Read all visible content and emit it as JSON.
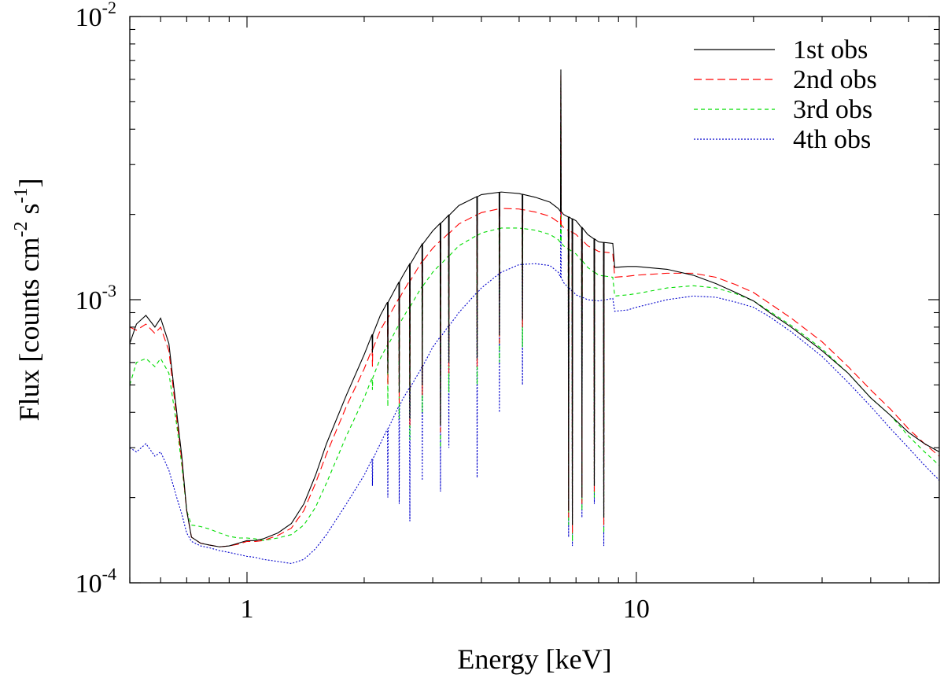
{
  "chart_data": {
    "type": "line",
    "title": "",
    "xlabel": "Energy [keV]",
    "ylabel": {
      "base": "Flux [counts cm",
      "exp1": "-2",
      "mid": " s",
      "exp2": "-1",
      "end": "]"
    },
    "x_scale": "log",
    "y_scale": "log",
    "xlim": [
      0.5,
      60
    ],
    "ylim": [
      0.0001,
      0.01
    ],
    "x_ticks": [
      {
        "value": 1,
        "label": "1"
      },
      {
        "value": 10,
        "label": "10"
      }
    ],
    "y_ticks": [
      {
        "value": 0.0001,
        "base": "10",
        "exp": "-4"
      },
      {
        "value": 0.001,
        "base": "10",
        "exp": "-3"
      },
      {
        "value": 0.01,
        "base": "10",
        "exp": "-2"
      }
    ],
    "grid": false,
    "legend_position": "top-right",
    "series": [
      {
        "name": "1st obs",
        "color": "#000000",
        "dash": "solid",
        "points": [
          [
            0.5,
            0.0007
          ],
          [
            0.52,
            0.00082
          ],
          [
            0.55,
            0.00088
          ],
          [
            0.58,
            0.0008
          ],
          [
            0.6,
            0.00086
          ],
          [
            0.63,
            0.0007
          ],
          [
            0.66,
            0.0004
          ],
          [
            0.68,
            0.00028
          ],
          [
            0.7,
            0.00018
          ],
          [
            0.72,
            0.000145
          ],
          [
            0.76,
            0.000138
          ],
          [
            0.8,
            0.000136
          ],
          [
            0.85,
            0.000134
          ],
          [
            0.9,
            0.000135
          ],
          [
            0.95,
            0.000138
          ],
          [
            1.0,
            0.000141
          ],
          [
            1.05,
            0.000141
          ],
          [
            1.1,
            0.000143
          ],
          [
            1.2,
            0.00015
          ],
          [
            1.3,
            0.000162
          ],
          [
            1.4,
            0.00019
          ],
          [
            1.5,
            0.00024
          ],
          [
            1.6,
            0.00031
          ],
          [
            1.8,
            0.00046
          ],
          [
            2.0,
            0.00064
          ],
          [
            2.2,
            0.00088
          ],
          [
            2.5,
            0.0012
          ],
          [
            2.8,
            0.00155
          ],
          [
            3.0,
            0.00175
          ],
          [
            3.5,
            0.00215
          ],
          [
            4.0,
            0.00235
          ],
          [
            4.5,
            0.0024
          ],
          [
            5.0,
            0.00237
          ],
          [
            5.5,
            0.0023
          ],
          [
            6.0,
            0.00221
          ],
          [
            6.3,
            0.0021
          ],
          [
            6.5,
            0.002
          ],
          [
            7.0,
            0.0019
          ],
          [
            7.5,
            0.0017
          ],
          [
            8.0,
            0.0016
          ],
          [
            8.7,
            0.00158
          ],
          [
            8.8,
            0.0013
          ],
          [
            9.5,
            0.00131
          ],
          [
            10,
            0.00131
          ],
          [
            12,
            0.00128
          ],
          [
            14,
            0.00122
          ],
          [
            16,
            0.00114
          ],
          [
            18,
            0.00106
          ],
          [
            20,
            0.00099
          ],
          [
            22,
            0.0009
          ],
          [
            25,
            0.0008
          ],
          [
            30,
            0.00066
          ],
          [
            35,
            0.00055
          ],
          [
            40,
            0.00045
          ],
          [
            45,
            0.00039
          ],
          [
            50,
            0.00034
          ],
          [
            55,
            0.00031
          ],
          [
            60,
            0.00029
          ]
        ],
        "dips": [
          [
            2.1,
            0.00065
          ],
          [
            2.3,
            0.00055
          ],
          [
            2.46,
            0.00047
          ],
          [
            2.62,
            0.00038
          ],
          [
            2.82,
            0.0005
          ],
          [
            3.14,
            0.00036
          ],
          [
            3.3,
            0.0006
          ],
          [
            3.9,
            0.00062
          ],
          [
            4.45,
            0.00075
          ],
          [
            5.1,
            0.00085
          ],
          [
            6.7,
            0.00018
          ],
          [
            6.85,
            0.00016
          ],
          [
            7.25,
            0.0002
          ],
          [
            7.8,
            0.00022
          ],
          [
            8.25,
            0.00017
          ]
        ],
        "peak": [
          6.4,
          0.0065
        ]
      },
      {
        "name": "2nd obs",
        "color": "#ff0000",
        "dash": "10,5",
        "points": [
          [
            0.5,
            0.0008
          ],
          [
            0.52,
            0.00078
          ],
          [
            0.55,
            0.00082
          ],
          [
            0.58,
            0.00076
          ],
          [
            0.6,
            0.0008
          ],
          [
            0.63,
            0.00066
          ],
          [
            0.66,
            0.00038
          ],
          [
            0.68,
            0.00027
          ],
          [
            0.7,
            0.00018
          ],
          [
            0.72,
            0.000145
          ],
          [
            0.76,
            0.000138
          ],
          [
            0.8,
            0.000136
          ],
          [
            0.85,
            0.000134
          ],
          [
            0.9,
            0.000135
          ],
          [
            0.95,
            0.000137
          ],
          [
            1.0,
            0.00014
          ],
          [
            1.05,
            0.00014
          ],
          [
            1.1,
            0.000141
          ],
          [
            1.2,
            0.000147
          ],
          [
            1.3,
            0.000156
          ],
          [
            1.4,
            0.00018
          ],
          [
            1.5,
            0.000225
          ],
          [
            1.6,
            0.000285
          ],
          [
            1.8,
            0.00042
          ],
          [
            2.0,
            0.00057
          ],
          [
            2.2,
            0.00078
          ],
          [
            2.5,
            0.00105
          ],
          [
            2.8,
            0.00135
          ],
          [
            3.0,
            0.00152
          ],
          [
            3.5,
            0.00185
          ],
          [
            4.0,
            0.00203
          ],
          [
            4.5,
            0.0021
          ],
          [
            5.0,
            0.00209
          ],
          [
            5.5,
            0.00204
          ],
          [
            6.0,
            0.00197
          ],
          [
            6.3,
            0.00188
          ],
          [
            6.5,
            0.0018
          ],
          [
            7.0,
            0.0017
          ],
          [
            7.5,
            0.00155
          ],
          [
            8.0,
            0.00148
          ],
          [
            8.7,
            0.00146
          ],
          [
            8.8,
            0.0012
          ],
          [
            9.5,
            0.00121
          ],
          [
            10,
            0.00122
          ],
          [
            12,
            0.00124
          ],
          [
            14,
            0.00124
          ],
          [
            16,
            0.0012
          ],
          [
            18,
            0.00113
          ],
          [
            20,
            0.00106
          ],
          [
            22,
            0.00097
          ],
          [
            25,
            0.00086
          ],
          [
            30,
            0.00071
          ],
          [
            35,
            0.00058
          ],
          [
            40,
            0.00048
          ],
          [
            45,
            0.00041
          ],
          [
            50,
            0.00035
          ],
          [
            55,
            0.00031
          ],
          [
            60,
            0.00028
          ]
        ],
        "dips": [
          [
            2.1,
            0.00058
          ],
          [
            2.3,
            0.0005
          ],
          [
            2.46,
            0.00043
          ],
          [
            2.62,
            0.00036
          ],
          [
            2.82,
            0.00046
          ],
          [
            3.14,
            0.00034
          ],
          [
            3.3,
            0.00055
          ],
          [
            3.9,
            0.00058
          ],
          [
            4.45,
            0.0007
          ],
          [
            5.1,
            0.0008
          ],
          [
            6.7,
            0.00017
          ],
          [
            6.85,
            0.00015
          ],
          [
            7.25,
            0.00019
          ],
          [
            7.8,
            0.00021
          ],
          [
            8.25,
            0.00016
          ]
        ],
        "peak": [
          6.4,
          0.0062
        ]
      },
      {
        "name": "3rd obs",
        "color": "#00dd00",
        "dash": "5,4",
        "points": [
          [
            0.5,
            0.0005
          ],
          [
            0.52,
            0.0006
          ],
          [
            0.55,
            0.00062
          ],
          [
            0.58,
            0.00058
          ],
          [
            0.6,
            0.00062
          ],
          [
            0.63,
            0.00055
          ],
          [
            0.66,
            0.00036
          ],
          [
            0.68,
            0.00026
          ],
          [
            0.7,
            0.00018
          ],
          [
            0.72,
            0.00016
          ],
          [
            0.76,
            0.000158
          ],
          [
            0.8,
            0.000155
          ],
          [
            0.85,
            0.00015
          ],
          [
            0.9,
            0.000146
          ],
          [
            0.95,
            0.000144
          ],
          [
            1.0,
            0.000144
          ],
          [
            1.05,
            0.000143
          ],
          [
            1.1,
            0.000141
          ],
          [
            1.2,
            0.000144
          ],
          [
            1.3,
            0.000148
          ],
          [
            1.4,
            0.00016
          ],
          [
            1.5,
            0.000185
          ],
          [
            1.6,
            0.000225
          ],
          [
            1.8,
            0.00033
          ],
          [
            2.0,
            0.00045
          ],
          [
            2.2,
            0.00062
          ],
          [
            2.5,
            0.00085
          ],
          [
            2.8,
            0.0011
          ],
          [
            3.0,
            0.00125
          ],
          [
            3.5,
            0.00155
          ],
          [
            4.0,
            0.00172
          ],
          [
            4.5,
            0.00179
          ],
          [
            5.0,
            0.00179
          ],
          [
            5.5,
            0.00176
          ],
          [
            6.0,
            0.0017
          ],
          [
            6.3,
            0.00163
          ],
          [
            6.5,
            0.00155
          ],
          [
            7.0,
            0.00145
          ],
          [
            7.5,
            0.0013
          ],
          [
            8.0,
            0.00122
          ],
          [
            8.7,
            0.0012
          ],
          [
            8.8,
            0.00103
          ],
          [
            9.5,
            0.00104
          ],
          [
            10,
            0.00105
          ],
          [
            12,
            0.0011
          ],
          [
            14,
            0.00112
          ],
          [
            16,
            0.0011
          ],
          [
            18,
            0.00105
          ],
          [
            20,
            0.00099
          ],
          [
            22,
            0.00091
          ],
          [
            25,
            0.00081
          ],
          [
            30,
            0.00067
          ],
          [
            35,
            0.00055
          ],
          [
            40,
            0.00045
          ],
          [
            45,
            0.00039
          ],
          [
            50,
            0.00033
          ],
          [
            55,
            0.00029
          ],
          [
            60,
            0.00026
          ]
        ],
        "dips": [
          [
            2.1,
            0.00048
          ],
          [
            2.3,
            0.00042
          ],
          [
            2.46,
            0.00038
          ],
          [
            2.62,
            0.00032
          ],
          [
            2.82,
            0.0004
          ],
          [
            3.14,
            0.0003
          ],
          [
            3.3,
            0.00047
          ],
          [
            3.9,
            0.0005
          ],
          [
            4.45,
            0.0006
          ],
          [
            5.1,
            0.00068
          ],
          [
            6.7,
            0.00016
          ],
          [
            6.85,
            0.00014
          ],
          [
            7.25,
            0.00018
          ],
          [
            7.8,
            0.0002
          ],
          [
            8.25,
            0.00015
          ]
        ],
        "peak": [
          6.4,
          0.006
        ]
      },
      {
        "name": "4th obs",
        "color": "#0000cc",
        "dash": "2,2",
        "points": [
          [
            0.5,
            0.0003
          ],
          [
            0.52,
            0.00029
          ],
          [
            0.55,
            0.00031
          ],
          [
            0.58,
            0.00028
          ],
          [
            0.6,
            0.00029
          ],
          [
            0.63,
            0.00025
          ],
          [
            0.66,
            0.0002
          ],
          [
            0.68,
            0.000175
          ],
          [
            0.7,
            0.00015
          ],
          [
            0.72,
            0.00014
          ],
          [
            0.76,
            0.000135
          ],
          [
            0.8,
            0.000133
          ],
          [
            0.85,
            0.00013
          ],
          [
            0.9,
            0.000128
          ],
          [
            0.95,
            0.000126
          ],
          [
            1.0,
            0.000124
          ],
          [
            1.05,
            0.000123
          ],
          [
            1.1,
            0.000121
          ],
          [
            1.2,
            0.000119
          ],
          [
            1.3,
            0.000117
          ],
          [
            1.4,
            0.000121
          ],
          [
            1.5,
            0.000132
          ],
          [
            1.6,
            0.000148
          ],
          [
            1.8,
            0.00019
          ],
          [
            2.0,
            0.00024
          ],
          [
            2.2,
            0.00031
          ],
          [
            2.5,
            0.00044
          ],
          [
            2.8,
            0.00057
          ],
          [
            3.0,
            0.00068
          ],
          [
            3.5,
            0.0009
          ],
          [
            4.0,
            0.0011
          ],
          [
            4.5,
            0.00125
          ],
          [
            5.0,
            0.00133
          ],
          [
            5.5,
            0.00134
          ],
          [
            6.0,
            0.00132
          ],
          [
            6.3,
            0.00125
          ],
          [
            6.5,
            0.00115
          ],
          [
            7.0,
            0.00104
          ],
          [
            7.5,
            0.001
          ],
          [
            8.0,
            0.00099
          ],
          [
            8.7,
            0.00101
          ],
          [
            8.8,
            0.00091
          ],
          [
            9.5,
            0.00092
          ],
          [
            10,
            0.00094
          ],
          [
            12,
            0.001
          ],
          [
            14,
            0.00103
          ],
          [
            16,
            0.00102
          ],
          [
            18,
            0.00098
          ],
          [
            20,
            0.00094
          ],
          [
            22,
            0.00087
          ],
          [
            25,
            0.00077
          ],
          [
            30,
            0.00063
          ],
          [
            35,
            0.00051
          ],
          [
            40,
            0.00042
          ],
          [
            45,
            0.00035
          ],
          [
            50,
            0.0003
          ],
          [
            55,
            0.00026
          ],
          [
            60,
            0.00023
          ]
        ],
        "dips": [
          [
            2.1,
            0.00022
          ],
          [
            2.3,
            0.0002
          ],
          [
            2.46,
            0.00019
          ],
          [
            2.62,
            0.000165
          ],
          [
            2.82,
            0.00023
          ],
          [
            3.14,
            0.00021
          ],
          [
            3.3,
            0.0003
          ],
          [
            3.9,
            0.000235
          ],
          [
            4.45,
            0.0004
          ],
          [
            5.1,
            0.0005
          ],
          [
            6.7,
            0.000145
          ],
          [
            6.85,
            0.000135
          ],
          [
            7.25,
            0.00017
          ],
          [
            7.8,
            0.00019
          ],
          [
            8.25,
            0.000135
          ]
        ],
        "peak": [
          6.4,
          0.0058
        ]
      }
    ]
  }
}
